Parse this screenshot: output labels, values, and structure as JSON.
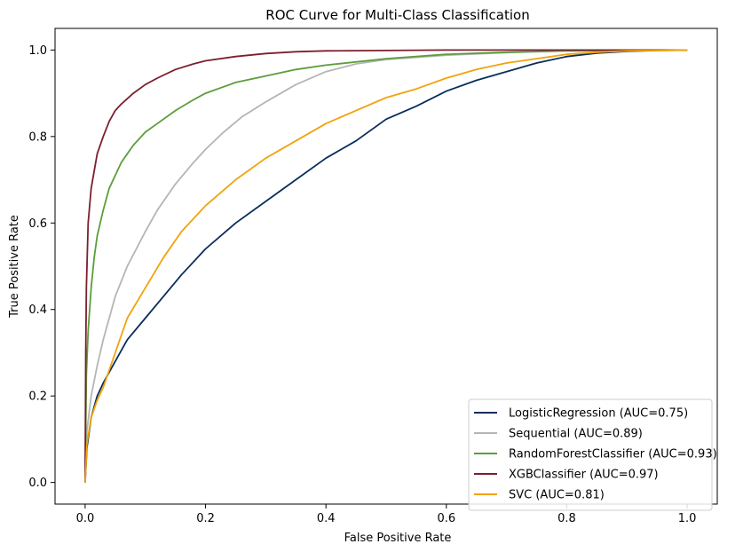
{
  "chart_data": {
    "type": "line",
    "title": "ROC Curve for Multi-Class Classification",
    "xlabel": "False Positive Rate",
    "ylabel": "True Positive Rate",
    "xlim": [
      -0.05,
      1.05
    ],
    "ylim": [
      -0.05,
      1.05
    ],
    "xticks": [
      0.0,
      0.2,
      0.4,
      0.6,
      0.8,
      1.0
    ],
    "xtick_labels": [
      "0.0",
      "0.2",
      "0.4",
      "0.6",
      "0.8",
      "1.0"
    ],
    "yticks": [
      0.0,
      0.2,
      0.4,
      0.6,
      0.8,
      1.0
    ],
    "ytick_labels": [
      "0.0",
      "0.2",
      "0.4",
      "0.6",
      "0.8",
      "1.0"
    ],
    "grid": false,
    "legend_position": "lower-right",
    "series": [
      {
        "name": "LogisticRegression (AUC=0.75)",
        "color": "#0a2d5c",
        "x": [
          0.0,
          0.003,
          0.01,
          0.02,
          0.03,
          0.05,
          0.07,
          0.1,
          0.13,
          0.16,
          0.2,
          0.25,
          0.3,
          0.35,
          0.4,
          0.45,
          0.5,
          0.55,
          0.6,
          0.65,
          0.7,
          0.75,
          0.8,
          0.85,
          0.9,
          0.95,
          1.0
        ],
        "y": [
          0.0,
          0.08,
          0.15,
          0.2,
          0.23,
          0.28,
          0.33,
          0.38,
          0.43,
          0.48,
          0.54,
          0.6,
          0.65,
          0.7,
          0.75,
          0.79,
          0.84,
          0.87,
          0.905,
          0.93,
          0.95,
          0.97,
          0.985,
          0.993,
          0.997,
          0.999,
          1.0
        ]
      },
      {
        "name": "Sequential (AUC=0.89)",
        "color": "#b5b5b5",
        "x": [
          0.0,
          0.003,
          0.01,
          0.02,
          0.03,
          0.05,
          0.07,
          0.1,
          0.12,
          0.15,
          0.18,
          0.2,
          0.23,
          0.26,
          0.3,
          0.35,
          0.4,
          0.45,
          0.5,
          0.6,
          0.7,
          0.8,
          0.9,
          1.0
        ],
        "y": [
          0.0,
          0.12,
          0.2,
          0.27,
          0.33,
          0.43,
          0.5,
          0.58,
          0.63,
          0.69,
          0.74,
          0.77,
          0.81,
          0.845,
          0.88,
          0.92,
          0.95,
          0.968,
          0.978,
          0.988,
          0.994,
          0.998,
          0.999,
          1.0
        ]
      },
      {
        "name": "RandomForestClassifier (AUC=0.93)",
        "color": "#5a9e3a",
        "x": [
          0.0,
          0.002,
          0.005,
          0.01,
          0.015,
          0.02,
          0.03,
          0.04,
          0.05,
          0.06,
          0.07,
          0.08,
          0.1,
          0.12,
          0.15,
          0.18,
          0.2,
          0.25,
          0.3,
          0.35,
          0.4,
          0.5,
          0.6,
          0.7,
          0.8,
          0.9,
          1.0
        ],
        "y": [
          0.0,
          0.25,
          0.35,
          0.45,
          0.52,
          0.57,
          0.63,
          0.68,
          0.71,
          0.74,
          0.76,
          0.78,
          0.81,
          0.83,
          0.86,
          0.885,
          0.9,
          0.925,
          0.94,
          0.955,
          0.965,
          0.98,
          0.99,
          0.995,
          0.998,
          0.999,
          1.0
        ]
      },
      {
        "name": "XGBClassifier (AUC=0.97)",
        "color": "#7b1f2e",
        "x": [
          0.0,
          0.001,
          0.002,
          0.005,
          0.01,
          0.015,
          0.02,
          0.03,
          0.04,
          0.05,
          0.06,
          0.08,
          0.1,
          0.12,
          0.15,
          0.18,
          0.2,
          0.25,
          0.3,
          0.35,
          0.4,
          0.5,
          0.6,
          0.7,
          0.8,
          0.9,
          1.0
        ],
        "y": [
          0.0,
          0.3,
          0.45,
          0.6,
          0.68,
          0.72,
          0.76,
          0.8,
          0.835,
          0.86,
          0.875,
          0.9,
          0.92,
          0.935,
          0.955,
          0.968,
          0.975,
          0.985,
          0.992,
          0.996,
          0.998,
          0.999,
          1.0,
          1.0,
          1.0,
          1.0,
          1.0
        ]
      },
      {
        "name": "SVC (AUC=0.81)",
        "color": "#f0a30a",
        "x": [
          0.0,
          0.003,
          0.01,
          0.02,
          0.03,
          0.05,
          0.07,
          0.1,
          0.13,
          0.16,
          0.2,
          0.25,
          0.3,
          0.35,
          0.4,
          0.45,
          0.5,
          0.55,
          0.6,
          0.65,
          0.7,
          0.75,
          0.8,
          0.85,
          0.9,
          0.95,
          1.0
        ],
        "y": [
          0.0,
          0.09,
          0.15,
          0.19,
          0.22,
          0.3,
          0.38,
          0.45,
          0.52,
          0.58,
          0.64,
          0.7,
          0.75,
          0.79,
          0.83,
          0.86,
          0.89,
          0.91,
          0.935,
          0.955,
          0.97,
          0.98,
          0.99,
          0.995,
          0.998,
          0.999,
          1.0
        ]
      }
    ]
  }
}
